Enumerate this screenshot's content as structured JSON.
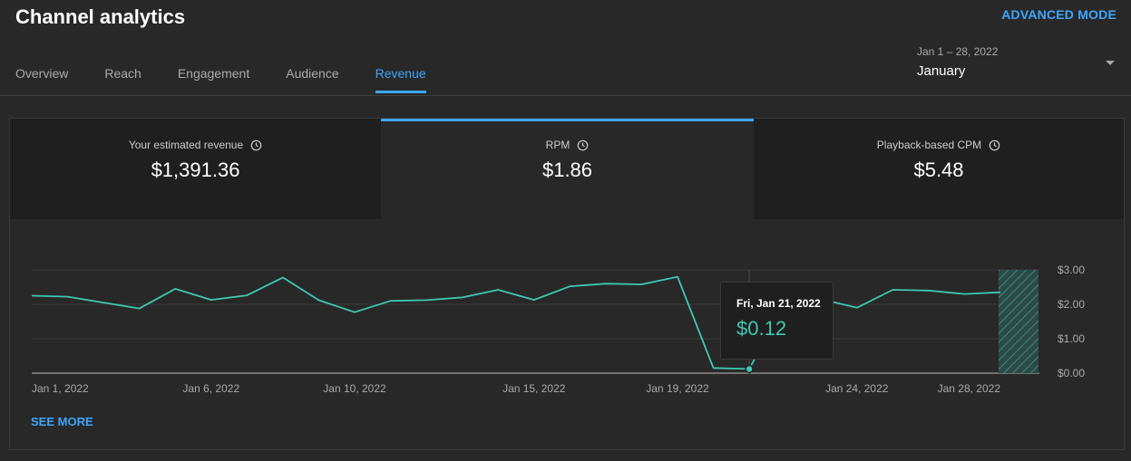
{
  "header": {
    "title": "Channel analytics",
    "advanced_mode": "ADVANCED MODE",
    "tabs": [
      "Overview",
      "Reach",
      "Engagement",
      "Audience",
      "Revenue"
    ],
    "active_tab": "Revenue"
  },
  "date_picker": {
    "range": "Jan 1 – 28, 2022",
    "label": "January"
  },
  "metrics": [
    {
      "label": "Your estimated revenue",
      "value": "$1,391.36"
    },
    {
      "label": "RPM",
      "value": "$1.86"
    },
    {
      "label": "Playback-based CPM",
      "value": "$5.48"
    }
  ],
  "active_metric": "RPM",
  "tooltip": {
    "date": "Fri, Jan 21, 2022",
    "value": "$0.12"
  },
  "see_more": "SEE MORE",
  "colors": {
    "accent": "#3ea6ff",
    "line": "#3ec9b0",
    "background": "#282828"
  },
  "chart_data": {
    "type": "line",
    "x": [
      "Jan 1, 2022",
      "Jan 2, 2022",
      "Jan 3, 2022",
      "Jan 4, 2022",
      "Jan 5, 2022",
      "Jan 6, 2022",
      "Jan 7, 2022",
      "Jan 8, 2022",
      "Jan 9, 2022",
      "Jan 10, 2022",
      "Jan 11, 2022",
      "Jan 12, 2022",
      "Jan 13, 2022",
      "Jan 14, 2022",
      "Jan 15, 2022",
      "Jan 16, 2022",
      "Jan 17, 2022",
      "Jan 18, 2022",
      "Jan 19, 2022",
      "Jan 20, 2022",
      "Jan 21, 2022",
      "Jan 22, 2022",
      "Jan 23, 2022",
      "Jan 24, 2022",
      "Jan 25, 2022",
      "Jan 26, 2022",
      "Jan 27, 2022",
      "Jan 28, 2022"
    ],
    "series": [
      {
        "values": [
          2.25,
          2.22,
          2.05,
          1.88,
          2.45,
          2.13,
          2.26,
          2.78,
          2.12,
          1.77,
          2.1,
          2.12,
          2.2,
          2.42,
          2.13,
          2.52,
          2.6,
          2.58,
          2.8,
          0.15,
          0.12,
          2.05,
          2.15,
          1.9,
          2.42,
          2.4,
          2.3,
          2.35
        ]
      }
    ],
    "x_tick_labels": [
      "Jan 1, 2022",
      "Jan 6, 2022",
      "Jan 10, 2022",
      "Jan 15, 2022",
      "Jan 19, 2022",
      "Jan 24, 2022",
      "Jan 28, 2022"
    ],
    "y_tick_labels": [
      "$0.00",
      "$1.00",
      "$2.00",
      "$3.00"
    ],
    "ylim": [
      0,
      3
    ],
    "grid": true,
    "highlighted_point": "Jan 21, 2022",
    "incomplete_last_day": true
  }
}
